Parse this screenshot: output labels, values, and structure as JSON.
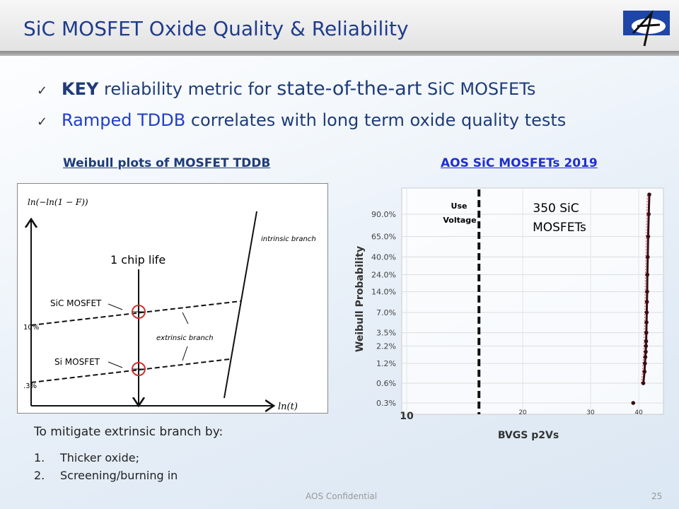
{
  "title": "SiC MOSFET Oxide Quality & Reliability",
  "logo_text": "A",
  "bullets": [
    {
      "icon": "check-icon",
      "parts": [
        "KEY",
        " reliability metric for ",
        "state-of-the-art",
        " SiC MOSFETs"
      ]
    },
    {
      "icon": "check-icon",
      "parts": [
        "Ramped TDDB",
        " correlates with long term oxide quality tests"
      ]
    }
  ],
  "left_caption": "Weibull plots of MOSFET TDDB",
  "right_caption": "AOS SiC MOSFETs 2019",
  "diagram": {
    "y_axis_label": "ln(−ln(1 − F))",
    "x_axis_label": "ln(t)",
    "y_ticks": [
      "10%",
      ".3%"
    ],
    "chip_life_label": "1 chip life",
    "sic_label": "SiC MOSFET",
    "si_label": "Si MOSFET",
    "extrinsic_label": "extrinsic branch",
    "intrinsic_label": "intrinsic branch",
    "marker_color": "#d03030"
  },
  "chart_data": {
    "type": "scatter",
    "xlabel": "BVGS p2Vs",
    "ylabel": "Weibull Probability",
    "x_scale": "log",
    "y_scale": "weibull",
    "xlim": [
      10,
      44
    ],
    "x_ticks": [
      "10",
      "20",
      "30",
      "40"
    ],
    "y_ticks": [
      "90.0%",
      "65.0%",
      "40.0%",
      "24.0%",
      "14.0%",
      "7.0%",
      "3.5%",
      "2.2%",
      "1.2%",
      "0.6%",
      "0.3%"
    ],
    "y_tick_values": [
      90,
      65,
      40,
      24,
      14,
      7,
      3.5,
      2.2,
      1.2,
      0.6,
      0.3
    ],
    "grid": true,
    "annotations": {
      "use_voltage": [
        "Use",
        "Voltage"
      ],
      "use_voltage_x": 15.4,
      "count_label": [
        "350 SiC",
        "MOSFETs"
      ]
    },
    "point_color": "#3a0f14",
    "fit_color": "#d04050",
    "points": [
      [
        38.7,
        0.3
      ],
      [
        41.1,
        0.6
      ],
      [
        41.4,
        0.9
      ],
      [
        41.5,
        1.2
      ],
      [
        41.6,
        1.5
      ],
      [
        41.7,
        1.8
      ],
      [
        41.75,
        2.2
      ],
      [
        41.8,
        2.6
      ],
      [
        41.85,
        3.5
      ],
      [
        41.9,
        5
      ],
      [
        41.95,
        7
      ],
      [
        42.0,
        10
      ],
      [
        42.05,
        14
      ],
      [
        42.1,
        24
      ],
      [
        42.2,
        40
      ],
      [
        42.3,
        65
      ],
      [
        42.45,
        90
      ],
      [
        42.6,
        99
      ]
    ]
  },
  "mitigate": {
    "heading": "To mitigate extrinsic branch by:",
    "steps": [
      {
        "n": "1.",
        "text": "Thicker oxide;"
      },
      {
        "n": "2.",
        "text": "Screening/burning in"
      }
    ]
  },
  "footer": "AOS Confidential",
  "page_number": "25"
}
